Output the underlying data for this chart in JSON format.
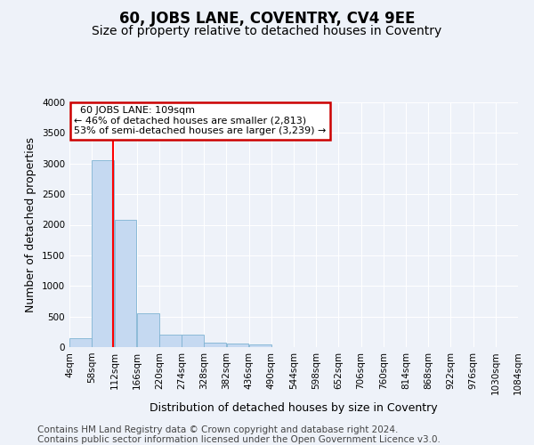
{
  "title": "60, JOBS LANE, COVENTRY, CV4 9EE",
  "subtitle": "Size of property relative to detached houses in Coventry",
  "xlabel": "Distribution of detached houses by size in Coventry",
  "ylabel": "Number of detached properties",
  "property_label": "60 JOBS LANE: 109sqm",
  "pct_smaller": 46,
  "n_smaller": 2813,
  "pct_larger_semi": 53,
  "n_larger_semi": 3239,
  "bin_edges": [
    4,
    58,
    112,
    166,
    220,
    274,
    328,
    382,
    436,
    490,
    544,
    598,
    652,
    706,
    760,
    814,
    868,
    922,
    976,
    1030,
    1084
  ],
  "bar_values": [
    140,
    3050,
    2080,
    560,
    200,
    200,
    75,
    55,
    50,
    5,
    0,
    0,
    0,
    0,
    0,
    0,
    0,
    0,
    0,
    5
  ],
  "bar_color": "#c5d9f1",
  "bar_edge_color": "#7fb3d3",
  "red_line_x": 109,
  "annotation_box_color": "#ffffff",
  "annotation_box_edge_color": "#cc0000",
  "ylim": [
    0,
    4000
  ],
  "yticks": [
    0,
    500,
    1000,
    1500,
    2000,
    2500,
    3000,
    3500,
    4000
  ],
  "tick_labels": [
    "4sqm",
    "58sqm",
    "112sqm",
    "166sqm",
    "220sqm",
    "274sqm",
    "328sqm",
    "382sqm",
    "436sqm",
    "490sqm",
    "544sqm",
    "598sqm",
    "652sqm",
    "706sqm",
    "760sqm",
    "814sqm",
    "868sqm",
    "922sqm",
    "976sqm",
    "1030sqm",
    "1084sqm"
  ],
  "footer_line1": "Contains HM Land Registry data © Crown copyright and database right 2024.",
  "footer_line2": "Contains public sector information licensed under the Open Government Licence v3.0.",
  "bg_color": "#eef2f9",
  "plot_bg_color": "#eef2f9",
  "grid_color": "#ffffff",
  "title_fontsize": 12,
  "subtitle_fontsize": 10,
  "axis_label_fontsize": 9,
  "tick_fontsize": 7.5,
  "annotation_fontsize": 8,
  "footer_fontsize": 7.5
}
